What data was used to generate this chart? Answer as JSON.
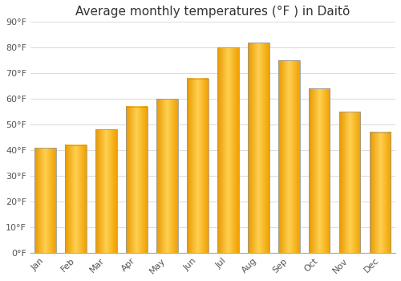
{
  "title": "Average monthly temperatures (°F ) in Daitō",
  "months": [
    "Jan",
    "Feb",
    "Mar",
    "Apr",
    "May",
    "Jun",
    "Jul",
    "Aug",
    "Sep",
    "Oct",
    "Nov",
    "Dec"
  ],
  "values": [
    41,
    42,
    48,
    57,
    60,
    68,
    80,
    82,
    75,
    64,
    55,
    47
  ],
  "ylim": [
    0,
    90
  ],
  "yticks": [
    0,
    10,
    20,
    30,
    40,
    50,
    60,
    70,
    80,
    90
  ],
  "ytick_labels": [
    "0°F",
    "10°F",
    "20°F",
    "30°F",
    "40°F",
    "50°F",
    "60°F",
    "70°F",
    "80°F",
    "90°F"
  ],
  "bar_color_left": "#F5A800",
  "bar_color_center": "#FFD050",
  "bar_color_right": "#F5A800",
  "bar_edge_color": "#999999",
  "background_color": "#ffffff",
  "plot_bg_color": "#ffffff",
  "title_fontsize": 11,
  "tick_fontsize": 8,
  "grid_color": "#dddddd",
  "bar_width": 0.7
}
